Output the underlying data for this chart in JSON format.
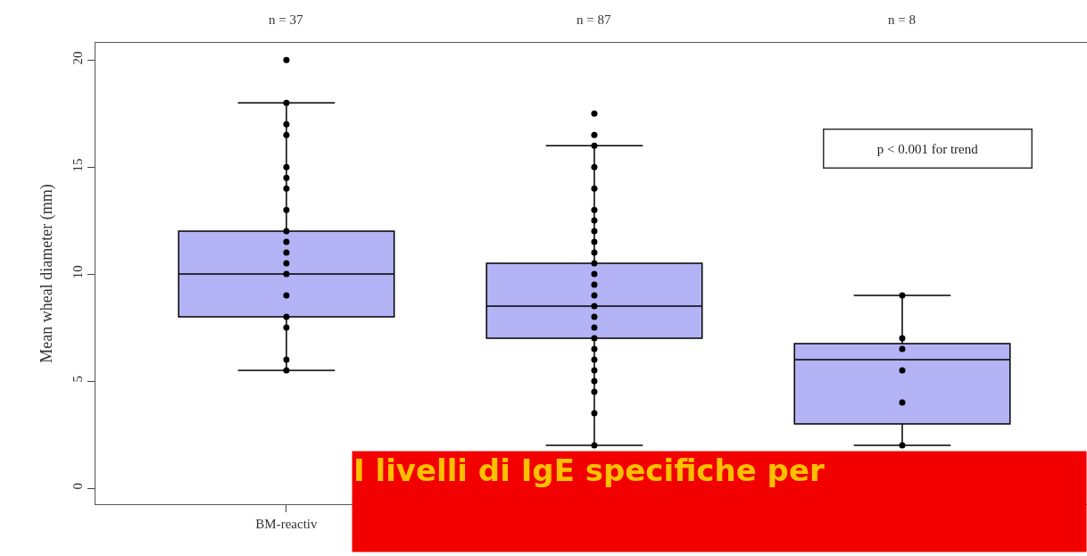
{
  "chart_data": {
    "type": "box",
    "ylabel": "Mean wheal diameter (mm)",
    "categories": [
      "BM-reactiv",
      null,
      null
    ],
    "boxes": [
      {
        "low": 5.5,
        "q1": 8,
        "median": 10,
        "q3": 12,
        "high": 18,
        "outliers": [
          20,
          18,
          17,
          16.5,
          15,
          14.5,
          14,
          13,
          12,
          11.5,
          11,
          10.5,
          10,
          9,
          8,
          7.5,
          6,
          5.5
        ]
      },
      {
        "low": 2,
        "q1": 7,
        "median": 8.5,
        "q3": 10.5,
        "high": 16,
        "outliers": [
          17.5,
          16.5,
          16,
          15,
          14,
          13,
          12.5,
          12,
          11.5,
          11,
          10.5,
          10,
          9.5,
          9,
          8.5,
          8,
          7.5,
          7,
          6.5,
          6,
          5.5,
          5,
          4.5,
          3.5,
          2
        ]
      },
      {
        "low": 2,
        "q1": 3,
        "median": 6,
        "q3": 6.75,
        "high": 9,
        "outliers": [
          9,
          7,
          6.5,
          5.5,
          4,
          2
        ]
      }
    ],
    "color": "#b3b3f5",
    "ylim": [
      -0.75,
      20.8
    ],
    "yticks": [
      0,
      5,
      10,
      15,
      20
    ],
    "annotations": [
      "n = 37",
      "n = 87",
      "n = 8",
      "p < 0.001 for trend",
      "I livelli di IgE specifiche per"
    ]
  }
}
